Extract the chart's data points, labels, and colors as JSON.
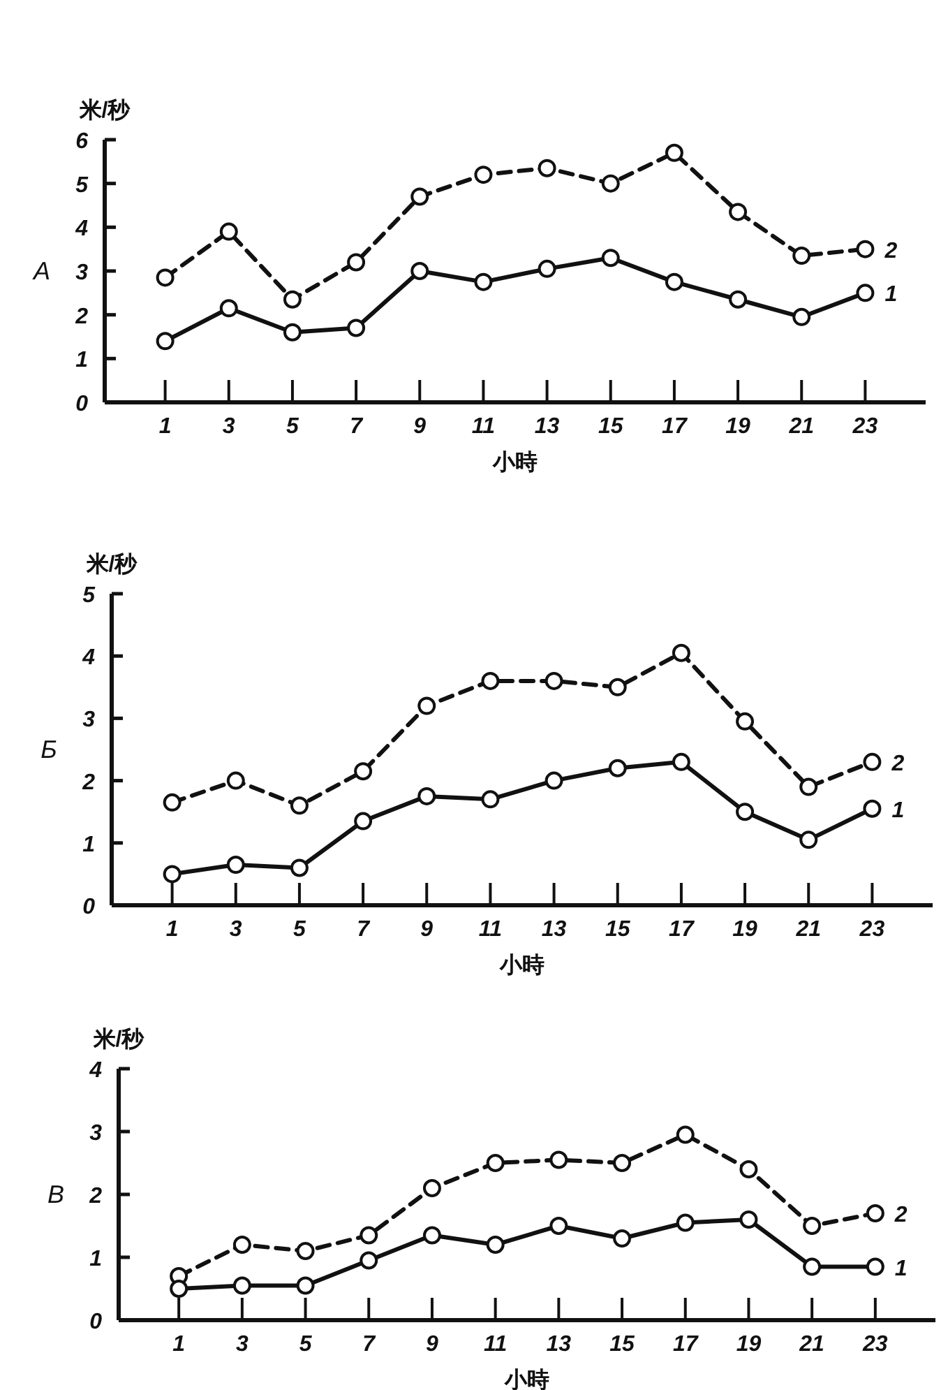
{
  "chart_data": [
    {
      "type": "line",
      "title": "A",
      "ylabel": "米/秒",
      "xlabel": "小時",
      "x": [
        1,
        3,
        5,
        7,
        9,
        11,
        13,
        15,
        17,
        19,
        21,
        23
      ],
      "xlim": [
        -0.9,
        24.9
      ],
      "xticks": [
        1,
        3,
        5,
        7,
        9,
        11,
        13,
        15,
        17,
        19,
        21,
        23
      ],
      "ylim": [
        0,
        6
      ],
      "yticks": [
        0,
        1,
        2,
        3,
        4,
        5,
        6
      ],
      "marker": "circle",
      "series": [
        {
          "name": "2",
          "color": "#111111",
          "line_style": "dashed",
          "values": [
            2.85,
            3.9,
            2.35,
            3.2,
            4.7,
            5.2,
            5.35,
            5.0,
            5.7,
            4.35,
            3.35,
            3.5
          ]
        },
        {
          "name": "1",
          "color": "#111111",
          "line_style": "solid",
          "values": [
            1.4,
            2.15,
            1.6,
            1.7,
            3.0,
            2.75,
            3.05,
            3.3,
            2.75,
            2.35,
            1.95,
            2.5
          ]
        }
      ]
    },
    {
      "type": "line",
      "title": "Б",
      "ylabel": "米/秒",
      "xlabel": "小時",
      "x": [
        1,
        3,
        5,
        7,
        9,
        11,
        13,
        15,
        17,
        19,
        21,
        23
      ],
      "xlim": [
        -0.9,
        24.9
      ],
      "xticks": [
        1,
        3,
        5,
        7,
        9,
        11,
        13,
        15,
        17,
        19,
        21,
        23
      ],
      "ylim": [
        0,
        5
      ],
      "yticks": [
        0,
        1,
        2,
        3,
        4,
        5
      ],
      "marker": "circle",
      "series": [
        {
          "name": "2",
          "color": "#111111",
          "line_style": "dashed",
          "values": [
            1.65,
            2.0,
            1.6,
            2.15,
            3.2,
            3.6,
            3.6,
            3.5,
            4.05,
            2.95,
            1.9,
            2.3
          ]
        },
        {
          "name": "1",
          "color": "#111111",
          "line_style": "solid",
          "values": [
            0.5,
            0.65,
            0.6,
            1.35,
            1.75,
            1.7,
            2.0,
            2.2,
            2.3,
            1.5,
            1.05,
            1.55
          ]
        }
      ]
    },
    {
      "type": "line",
      "title": "В",
      "ylabel": "米/秒",
      "xlabel": "小時",
      "x": [
        1,
        3,
        5,
        7,
        9,
        11,
        13,
        15,
        17,
        19,
        21,
        23
      ],
      "xlim": [
        -0.9,
        24.9
      ],
      "xticks": [
        1,
        3,
        5,
        7,
        9,
        11,
        13,
        15,
        17,
        19,
        21,
        23
      ],
      "ylim": [
        0,
        4
      ],
      "yticks": [
        0,
        1,
        2,
        3,
        4
      ],
      "marker": "circle",
      "series": [
        {
          "name": "2",
          "color": "#111111",
          "line_style": "dashed",
          "values": [
            0.7,
            1.2,
            1.1,
            1.35,
            2.1,
            2.5,
            2.55,
            2.5,
            2.95,
            2.4,
            1.5,
            1.7
          ]
        },
        {
          "name": "1",
          "color": "#111111",
          "line_style": "solid",
          "values": [
            0.5,
            0.55,
            0.55,
            0.95,
            1.35,
            1.2,
            1.5,
            1.3,
            1.55,
            1.6,
            0.85,
            0.85
          ]
        }
      ]
    }
  ]
}
